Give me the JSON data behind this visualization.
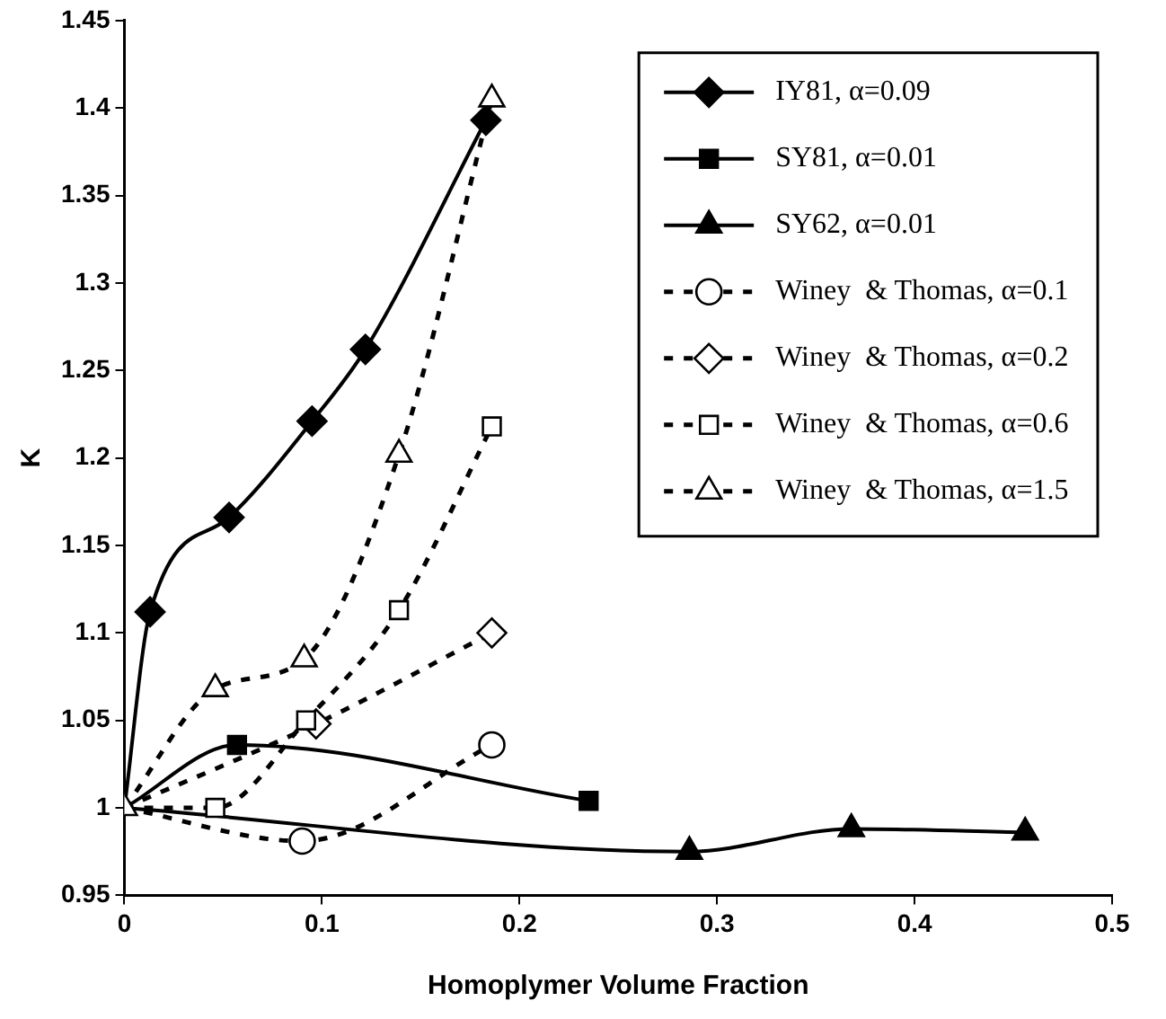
{
  "chart_data": {
    "type": "line",
    "xlabel": "Homoplymer Volume Fraction",
    "ylabel": "K",
    "xlim": [
      0,
      0.5
    ],
    "xticks": [
      0,
      0.1,
      0.2,
      0.3,
      0.4,
      0.5
    ],
    "ylim": [
      0.95,
      1.45
    ],
    "yticks": [
      0.95,
      1,
      1.05,
      1.1,
      1.15,
      1.2,
      1.25,
      1.3,
      1.35,
      1.4,
      1.45
    ],
    "grid": false,
    "legend": "top right",
    "series": [
      {
        "name": "IY81, α=0.09",
        "color": "#000000",
        "marker": "diamond",
        "line_style": "solid",
        "x": [
          0,
          0.013,
          0.053,
          0.095,
          0.122,
          0.183
        ],
        "values": [
          1,
          1.112,
          1.166,
          1.221,
          1.262,
          1.393
        ]
      },
      {
        "name": "SY81, α=0.01",
        "color": "#000000",
        "marker": "square",
        "line_style": "solid",
        "x": [
          0,
          0.057,
          0.235
        ],
        "values": [
          1,
          1.036,
          1.004
        ]
      },
      {
        "name": "SY62, α=0.01",
        "color": "#000000",
        "marker": "triangle",
        "line_style": "solid",
        "x": [
          0,
          0.286,
          0.368,
          0.456
        ],
        "values": [
          1,
          0.975,
          0.988,
          0.986
        ]
      },
      {
        "name": "Winey  & Thomas, α=0.1",
        "color": "#000000",
        "marker": "circle",
        "line_style": "dashed",
        "x": [
          0,
          0.09,
          0.186
        ],
        "values": [
          1,
          0.981,
          1.036
        ]
      },
      {
        "name": "Winey  & Thomas, α=0.2",
        "color": "#000000",
        "marker": "diamond",
        "line_style": "dashed",
        "x": [
          0,
          0.097,
          0.186
        ],
        "values": [
          1,
          1.048,
          1.1
        ]
      },
      {
        "name": "Winey  & Thomas, α=0.6",
        "color": "#000000",
        "marker": "square",
        "line_style": "dashed",
        "x": [
          0,
          0.046,
          0.092,
          0.139,
          0.186
        ],
        "values": [
          1,
          1.0,
          1.05,
          1.113,
          1.218
        ]
      },
      {
        "name": "Winey  & Thomas, α=1.5",
        "color": "#000000",
        "marker": "triangle",
        "line_style": "dashed",
        "x": [
          0,
          0.046,
          0.091,
          0.139,
          0.186
        ],
        "values": [
          1,
          1.068,
          1.085,
          1.202,
          1.405
        ]
      }
    ]
  }
}
